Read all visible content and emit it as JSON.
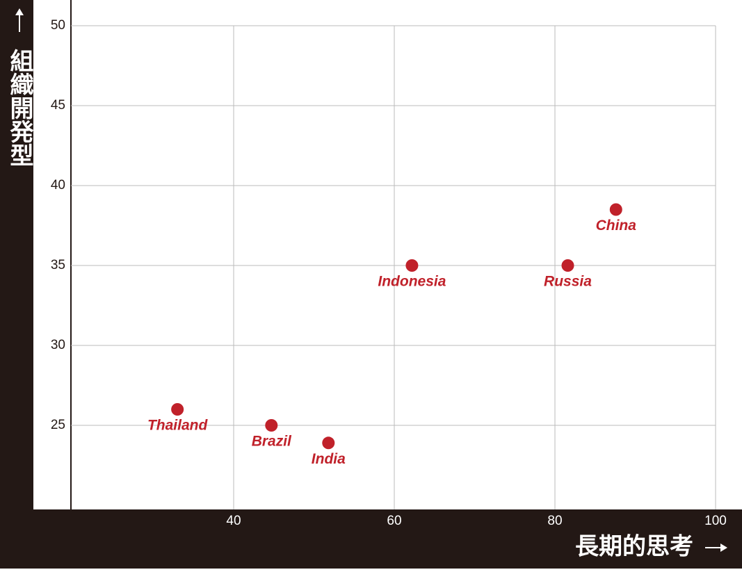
{
  "chart_data": {
    "type": "scatter",
    "x_label": "長期的思考",
    "y_label": "組織開発型",
    "labels": [
      "Thailand",
      "Brazil",
      "India",
      "Indonesia",
      "Russia",
      "China"
    ],
    "x": [
      33,
      44.7,
      51.8,
      62.2,
      81.6,
      87.6
    ],
    "values": [
      26,
      25,
      23.9,
      35,
      35,
      38.5
    ],
    "color": "#c0212a",
    "xlim": [
      20,
      100
    ],
    "xticks": [
      40,
      60,
      80,
      100
    ],
    "ylim": [
      20,
      50
    ],
    "yticks": [
      25,
      30,
      35,
      40,
      45,
      50
    ],
    "grid": true
  }
}
